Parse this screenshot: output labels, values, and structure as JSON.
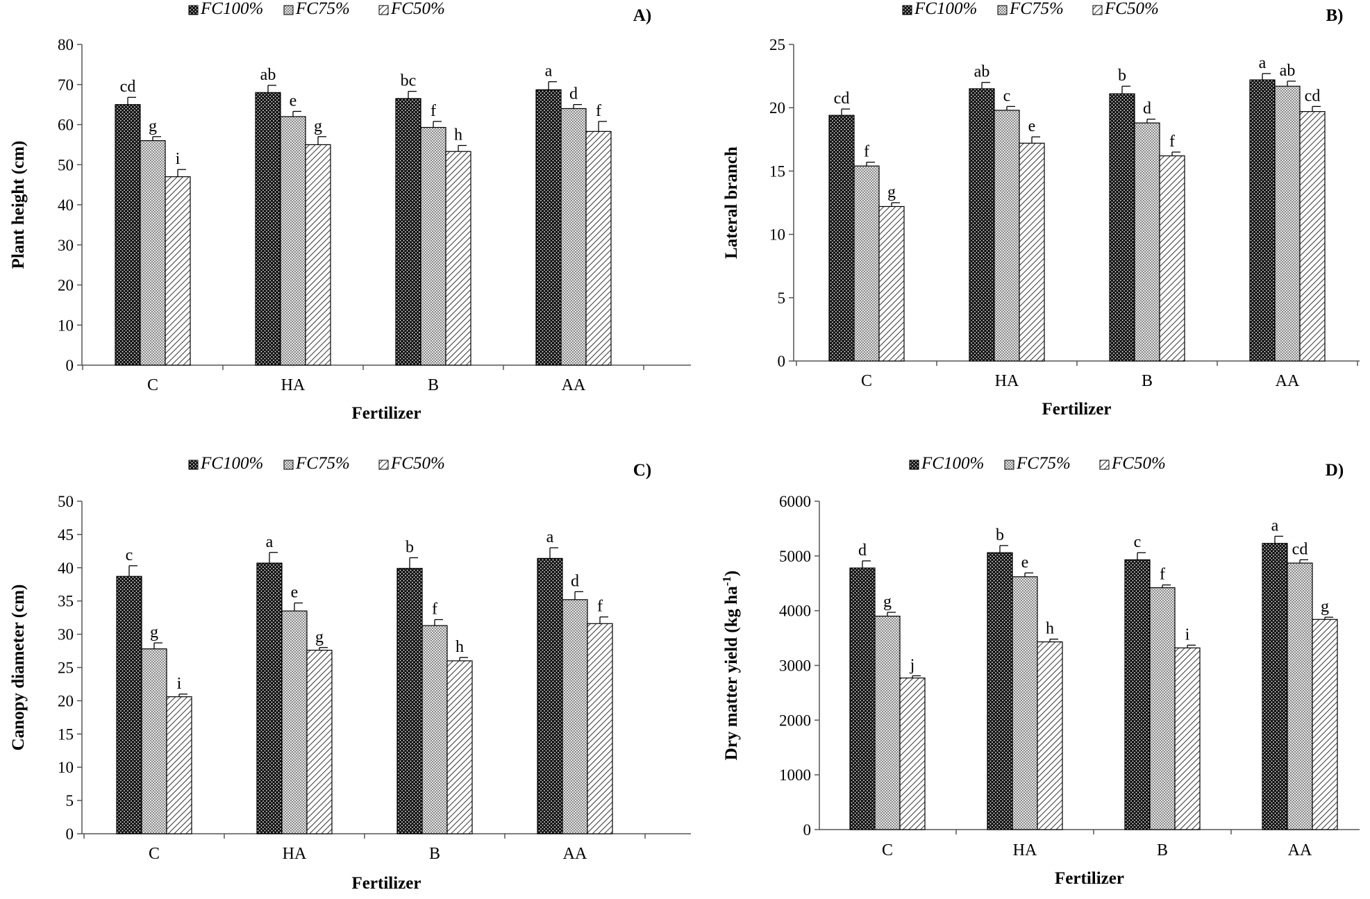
{
  "figure": {
    "legend": [
      "FC100%",
      "FC75%",
      "FC50%"
    ],
    "category_axis_label": "Fertilizer"
  },
  "chart_data": [
    {
      "type": "bar",
      "panel_label": "A)",
      "title": "",
      "xlabel": "Fertilizer",
      "ylabel": "Plant height (cm)",
      "ylim": [
        0,
        80
      ],
      "yticks": [
        0,
        10,
        20,
        30,
        40,
        50,
        60,
        70,
        80
      ],
      "categories": [
        "C",
        "HA",
        "B",
        "AA"
      ],
      "legend_position": "top",
      "series": [
        {
          "name": "FC100%",
          "values": [
            65,
            68,
            66.5,
            68.7
          ],
          "errors": [
            1.8,
            1.8,
            1.8,
            2.0
          ],
          "letters": [
            "cd",
            "ab",
            "bc",
            "a"
          ]
        },
        {
          "name": "FC75%",
          "values": [
            56,
            62,
            59.3,
            64
          ],
          "errors": [
            1.0,
            1.3,
            1.5,
            1.0
          ],
          "letters": [
            "g",
            "e",
            "f",
            "d"
          ]
        },
        {
          "name": "FC50%",
          "values": [
            47,
            55,
            53.3,
            58.3
          ],
          "errors": [
            1.8,
            2.0,
            1.5,
            2.5
          ],
          "letters": [
            "i",
            "g",
            "h",
            "f"
          ]
        }
      ]
    },
    {
      "type": "bar",
      "panel_label": "B)",
      "title": "",
      "xlabel": "Fertilizer",
      "ylabel": "Lateral branch",
      "ylim": [
        0,
        25
      ],
      "yticks": [
        0,
        5,
        10,
        15,
        20,
        25
      ],
      "categories": [
        "C",
        "HA",
        "B",
        "AA"
      ],
      "legend_position": "top",
      "series": [
        {
          "name": "FC100%",
          "values": [
            19.4,
            21.5,
            21.1,
            22.2
          ],
          "errors": [
            0.5,
            0.5,
            0.6,
            0.5
          ],
          "letters": [
            "cd",
            "ab",
            "b",
            "a"
          ]
        },
        {
          "name": "FC75%",
          "values": [
            15.4,
            19.8,
            18.8,
            21.7
          ],
          "errors": [
            0.3,
            0.3,
            0.3,
            0.4
          ],
          "letters": [
            "f",
            "c",
            "d",
            "ab"
          ]
        },
        {
          "name": "FC50%",
          "values": [
            12.2,
            17.2,
            16.2,
            19.7
          ],
          "errors": [
            0.3,
            0.5,
            0.3,
            0.4
          ],
          "letters": [
            "g",
            "e",
            "f",
            "cd"
          ]
        }
      ]
    },
    {
      "type": "bar",
      "panel_label": "C)",
      "title": "",
      "xlabel": "Fertilizer",
      "ylabel": "Canopy diameter (cm)",
      "ylim": [
        0,
        50
      ],
      "yticks": [
        0,
        5,
        10,
        15,
        20,
        25,
        30,
        35,
        40,
        45,
        50
      ],
      "categories": [
        "C",
        "HA",
        "B",
        "AA"
      ],
      "legend_position": "top",
      "series": [
        {
          "name": "FC100%",
          "values": [
            38.7,
            40.7,
            39.9,
            41.4
          ],
          "errors": [
            1.6,
            1.6,
            1.6,
            1.6
          ],
          "letters": [
            "c",
            "a",
            "b",
            "a"
          ]
        },
        {
          "name": "FC75%",
          "values": [
            27.8,
            33.5,
            31.3,
            35.2
          ],
          "errors": [
            0.9,
            1.2,
            0.9,
            1.2
          ],
          "letters": [
            "g",
            "e",
            "f",
            "d"
          ]
        },
        {
          "name": "FC50%",
          "values": [
            20.6,
            27.6,
            26,
            31.6
          ],
          "errors": [
            0.4,
            0.4,
            0.5,
            1.0
          ],
          "letters": [
            "i",
            "g",
            "h",
            "f"
          ]
        }
      ]
    },
    {
      "type": "bar",
      "panel_label": "D)",
      "title": "",
      "xlabel": "Fertilizer",
      "ylabel": "Dry matter yield (kg ha",
      "ylabel_sup": "-1",
      "ylabel_end": ")",
      "ylim": [
        0,
        6000
      ],
      "yticks": [
        0,
        1000,
        2000,
        3000,
        4000,
        5000,
        6000
      ],
      "categories": [
        "C",
        "HA",
        "B",
        "AA"
      ],
      "legend_position": "top",
      "series": [
        {
          "name": "FC100%",
          "values": [
            4780,
            5060,
            4930,
            5230
          ],
          "errors": [
            130,
            130,
            130,
            130
          ],
          "letters": [
            "d",
            "b",
            "c",
            "a"
          ]
        },
        {
          "name": "FC75%",
          "values": [
            3900,
            4620,
            4420,
            4870
          ],
          "errors": [
            70,
            70,
            50,
            60
          ],
          "letters": [
            "g",
            "e",
            "f",
            "cd"
          ]
        },
        {
          "name": "FC50%",
          "values": [
            2770,
            3430,
            3320,
            3840
          ],
          "errors": [
            40,
            50,
            50,
            40
          ],
          "letters": [
            "j",
            "h",
            "i",
            "g"
          ]
        }
      ]
    }
  ]
}
